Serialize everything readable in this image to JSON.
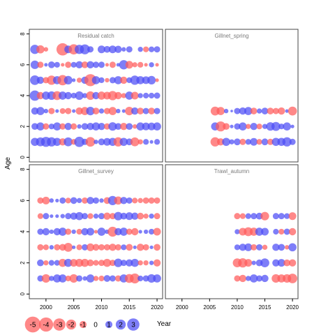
{
  "chart_data": {
    "type": "scatter",
    "subtype": "bubble-residual-panels",
    "xlabel": "Year",
    "ylabel": "Age",
    "xlim": [
      1997,
      2021
    ],
    "ylim": [
      -0.3,
      8.3
    ],
    "x_ticks": [
      2000,
      2005,
      2010,
      2015,
      2020
    ],
    "y_ticks": [
      0,
      2,
      4,
      6,
      8
    ],
    "positive_color": "#4c4cf5",
    "negative_color": "#ff5a5a",
    "legend": {
      "placement": "bottom-left",
      "values": [
        -5,
        -4,
        -3,
        -2,
        -1,
        0,
        1,
        2,
        3
      ],
      "labels": [
        "-5",
        "-4",
        "-3",
        "-2",
        "-1",
        "0",
        "1",
        "2",
        "3"
      ]
    },
    "panels": [
      {
        "title": "Residual catch",
        "years": [
          1998,
          1999,
          2000,
          2001,
          2002,
          2003,
          2004,
          2005,
          2006,
          2007,
          2008,
          2009,
          2010,
          2011,
          2012,
          2013,
          2014,
          2015,
          2016,
          2017,
          2018,
          2019,
          2020
        ],
        "ages": [
          1,
          2,
          3,
          4,
          5,
          6,
          7
        ],
        "residuals": [
          [
            1.0,
            1.2,
            1.5,
            1.3,
            1.0,
            -0.8,
            1.2,
            -0.5,
            1.6,
            0.6,
            -1.4,
            0.3,
            0.7,
            0.9,
            1.0,
            -1.3,
            1.0,
            0.7,
            -1.2,
            -0.4,
            0.5,
            0.2,
            0.5
          ],
          [
            0.7,
            1.0,
            -0.6,
            0.5,
            1.0,
            -0.6,
            0.8,
            -0.6,
            0.3,
            0.7,
            0.8,
            1.0,
            0.8,
            -0.6,
            1.1,
            0.7,
            -0.8,
            0.7,
            -0.3,
            1.0,
            0.9,
            0.9,
            1.0
          ],
          [
            0.8,
            1.0,
            0.3,
            -0.6,
            0.2,
            -0.5,
            -0.6,
            0.2,
            -0.8,
            -1.0,
            1.1,
            -0.7,
            0.4,
            -0.6,
            -1.0,
            0.3,
            0.2,
            -1.1,
            0.8,
            -0.7,
            0.6,
            -0.7,
            0.6
          ],
          [
            1.6,
            -0.8,
            1.0,
            1.1,
            -1.2,
            1.0,
            0.8,
            0.5,
            1.1,
            0.4,
            -1.1,
            0.8,
            -1.0,
            -0.9,
            -1.3,
            -0.8,
            -0.4,
            1.0,
            -0.9,
            0.4,
            0.5,
            0.5,
            0.6
          ],
          [
            1.4,
            0.8,
            -0.6,
            -1.3,
            1.0,
            -1.6,
            1.1,
            0.2,
            -0.4,
            0.8,
            -2.2,
            1.0,
            0.5,
            -0.3,
            0.6,
            1.0,
            -0.8,
            0.5,
            1.3,
            1.0,
            0.9,
            1.1,
            -0.2
          ],
          [
            1.1,
            -0.6,
            0.2,
            0.7,
            0.5,
            -0.2,
            -0.6,
            0.5,
            0.8,
            -0.7,
            0.8,
            0.6,
            0.6,
            -0.2,
            -0.6,
            0.2,
            1.3,
            -0.9,
            -0.4,
            -0.5,
            -0.2,
            0.4,
            -0.2
          ],
          [
            1.3,
            -1.0,
            -0.3,
            0,
            0,
            -2.3,
            0.9,
            -1.6,
            1.3,
            1.5,
            0.6,
            0,
            0.9,
            0.7,
            0.9,
            0.8,
            0.3,
            0.6,
            0,
            0.4,
            -0.5,
            0.5,
            0.6
          ]
        ]
      },
      {
        "title": "Gillnet_spring",
        "years": [
          2006,
          2007,
          2008,
          2009,
          2010,
          2011,
          2012,
          2013,
          2014,
          2015,
          2016,
          2017,
          2018,
          2019,
          2020
        ],
        "ages": [
          1,
          2,
          3
        ],
        "residuals": [
          [
            -1.3,
            -0.8,
            1.0,
            0.4,
            0.7,
            -0.6,
            0.5,
            0.9,
            -0.5,
            0.7,
            -0.6,
            1.0,
            1.0,
            1.3,
            0.6
          ],
          [
            1.0,
            -1.5,
            -0.7,
            0.2,
            0.6,
            1.0,
            -0.4,
            0.8,
            -0.5,
            0.4,
            1.1,
            1.2,
            0.5,
            1.0,
            0.2
          ],
          [
            -1.2,
            -1.0,
            0.3,
            0.1,
            0.6,
            0.8,
            1.0,
            -0.7,
            0.4,
            0.7,
            -0.7,
            -0.6,
            -0.8,
            0.2,
            -1.2
          ]
        ]
      },
      {
        "title": "Gillnet_survey",
        "years": [
          1998,
          1999,
          2000,
          2001,
          2002,
          2003,
          2004,
          2005,
          2006,
          2007,
          2008,
          2009,
          2010,
          2011,
          2012,
          2013,
          2014,
          2015,
          2016,
          2017,
          2018,
          2019,
          2020
        ],
        "ages": [
          1,
          2,
          3,
          4,
          5,
          6
        ],
        "residuals": [
          [
            0,
            0.6,
            -1.1,
            0.4,
            1.0,
            1.0,
            -0.5,
            -1.1,
            0.6,
            0.3,
            1.0,
            -0.4,
            -0.5,
            0.7,
            0.6,
            -0.6,
            1.0,
            -1.2,
            -1.5,
            0.5,
            0.6,
            1.1,
            1.0
          ],
          [
            0,
            0.7,
            -0.4,
            0.5,
            0.5,
            -1.0,
            1.0,
            -0.9,
            -1.0,
            -1.0,
            -0.7,
            -0.5,
            -0.6,
            -1.0,
            -0.6,
            1.1,
            0.6,
            0.8,
            1.0,
            -0.4,
            -0.4,
            0.3,
            -0.8
          ],
          [
            0,
            -0.6,
            -0.5,
            0.3,
            -0.6,
            -0.7,
            -1.2,
            0.2,
            -0.5,
            0.6,
            -0.9,
            -0.7,
            -0.6,
            -0.6,
            -0.8,
            -0.6,
            0.5,
            -0.7,
            0.2,
            -0.8,
            -0.6,
            0.2,
            -0.7
          ],
          [
            0,
            0.6,
            0.8,
            0.3,
            0.8,
            1.0,
            -0.6,
            0.3,
            -0.5,
            0.8,
            0.9,
            -0.2,
            1.0,
            0.3,
            -1.5,
            0.8,
            1.0,
            -0.6,
            -0.8,
            0.2,
            0.3,
            0.5,
            -0.9
          ],
          [
            0,
            -0.5,
            0.6,
            0.2,
            0.2,
            0.3,
            0.6,
            0.8,
            1.0,
            0.6,
            -0.5,
            0.4,
            0.6,
            -0.8,
            -0.6,
            1.1,
            0.7,
            0.9,
            0.8,
            -0.7,
            -0.4,
            0.4,
            -0.6
          ],
          [
            0,
            -0.6,
            -0.9,
            0.3,
            0.2,
            0.6,
            -0.5,
            0.7,
            0.4,
            -0.6,
            0.8,
            0.6,
            0.3,
            -0.7,
            1.3,
            -1.0,
            0.8,
            0.6,
            -0.5,
            -0.4,
            -0.6,
            -0.6,
            -0.6
          ]
        ]
      },
      {
        "title": "Trawl_autumn",
        "years": [
          2010,
          2011,
          2012,
          2013,
          2014,
          2015,
          2016,
          2017,
          2018,
          2019,
          2020
        ],
        "ages": [
          1,
          2,
          3,
          4,
          5
        ],
        "residuals": [
          [
            -0.6,
            -0.8,
            0.4,
            1.0,
            0.6,
            0.8,
            0,
            -1.1,
            -1.0,
            -1.1,
            -1.4
          ],
          [
            -1.2,
            -1.3,
            -0.9,
            0.3,
            0.7,
            1.2,
            0,
            0.8,
            0.9,
            -0.7,
            -0.8
          ],
          [
            0.5,
            0.8,
            0.9,
            -0.6,
            0.6,
            -0.4,
            0,
            0.8,
            0.7,
            -0.3,
            1.0
          ],
          [
            0.4,
            -0.9,
            -1.2,
            -1.0,
            1.0,
            0.9,
            0,
            0.5,
            -0.5,
            0.6,
            -0.8
          ],
          [
            -0.6,
            -0.5,
            0.5,
            0.6,
            0.7,
            -1.1,
            0,
            0.6,
            0.6,
            0.5,
            -0.9
          ]
        ]
      }
    ]
  }
}
